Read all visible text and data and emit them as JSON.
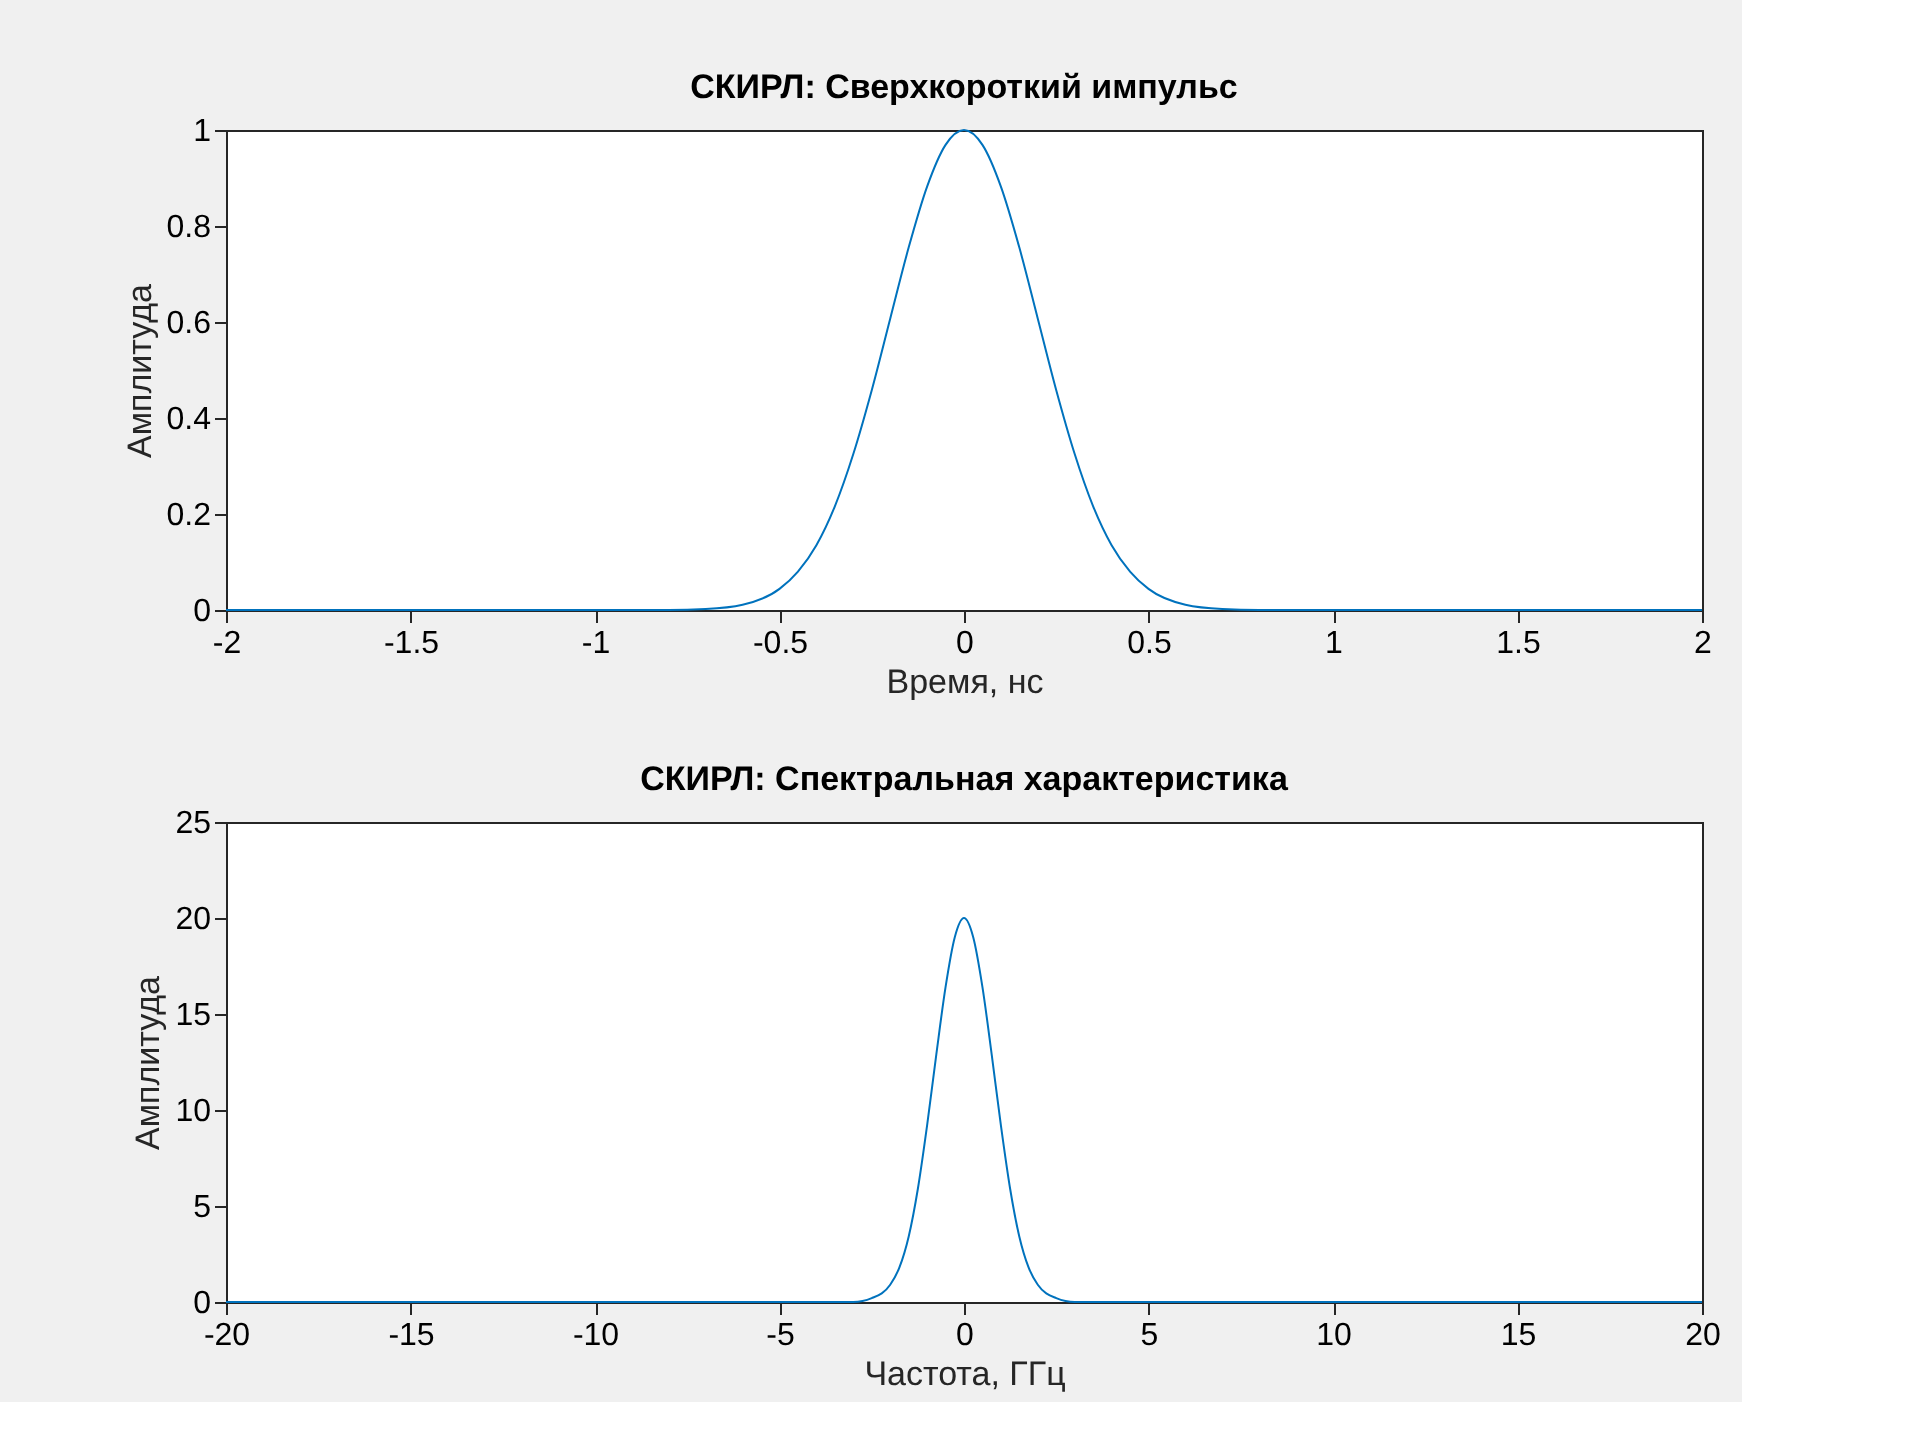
{
  "chart_data": [
    {
      "type": "line",
      "title": "СКИРЛ: Сверхкороткий импульс",
      "xlabel": "Время, нс",
      "ylabel": "Амплитуда",
      "x": [
        -2,
        -1,
        -0.8,
        -0.7,
        -0.6,
        -0.5,
        -0.45,
        -0.4,
        -0.35,
        -0.3,
        -0.25,
        -0.2,
        -0.15,
        -0.1,
        -0.05,
        0,
        0.05,
        0.1,
        0.15,
        0.2,
        0.25,
        0.3,
        0.35,
        0.4,
        0.45,
        0.5,
        0.6,
        0.7,
        0.8,
        1,
        2
      ],
      "series": [
        {
          "color": "#0072bd",
          "values": [
            0,
            0,
            0,
            0.002,
            0.011,
            0.044,
            0.08,
            0.135,
            0.216,
            0.325,
            0.458,
            0.607,
            0.755,
            0.882,
            0.969,
            1,
            0.969,
            0.882,
            0.755,
            0.607,
            0.458,
            0.325,
            0.216,
            0.135,
            0.08,
            0.044,
            0.011,
            0.002,
            0,
            0,
            0
          ]
        }
      ],
      "xlim": [
        -2,
        2
      ],
      "xticks": [
        -2,
        -1.5,
        -1,
        -0.5,
        0,
        0.5,
        1,
        1.5,
        2
      ],
      "ylim": [
        0,
        1
      ],
      "yticks": [
        0,
        0.2,
        0.4,
        0.6,
        0.8,
        1
      ],
      "grid": false
    },
    {
      "type": "line",
      "title": "СКИРЛ: Спектральная характеристика",
      "xlabel": "Частота, ГГц",
      "ylabel": "Амплитуда",
      "x": [
        -20,
        -3,
        -2.5,
        -2,
        -1.75,
        -1.5,
        -1.25,
        -1,
        -0.75,
        -0.5,
        -0.25,
        0,
        0.25,
        0.5,
        0.75,
        1,
        1.25,
        1.5,
        1.75,
        2,
        2.5,
        3,
        20
      ],
      "series": [
        {
          "color": "#0072bd",
          "values": [
            0,
            0,
            0.2,
            0.9,
            1.8,
            3.4,
            5.9,
            9.2,
            12.9,
            16.4,
            19.0,
            20,
            19.0,
            16.4,
            12.9,
            9.2,
            5.9,
            3.4,
            1.8,
            0.9,
            0.2,
            0,
            0
          ]
        }
      ],
      "xlim": [
        -20,
        20
      ],
      "xticks": [
        -20,
        -15,
        -10,
        -5,
        0,
        5,
        10,
        15,
        20
      ],
      "ylim": [
        0,
        25
      ],
      "yticks": [
        0,
        5,
        10,
        15,
        20,
        25
      ],
      "grid": false
    }
  ]
}
